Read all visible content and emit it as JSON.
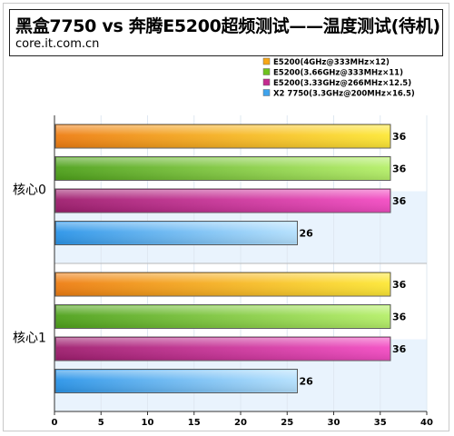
{
  "header": {
    "title": "黑盒7750 vs 奔腾E5200超频测试——温度测试(待机)",
    "source": "core.it.com.cn"
  },
  "chart_data": {
    "type": "bar",
    "orientation": "horizontal",
    "title": "黑盒7750 vs 奔腾E5200超频测试——温度测试(待机)",
    "xlabel": "",
    "ylabel": "",
    "xlim": [
      0,
      40
    ],
    "x_ticks": [
      0,
      5,
      10,
      15,
      20,
      25,
      30,
      35,
      40
    ],
    "categories": [
      "核心0",
      "核心1"
    ],
    "legend_position": "top-right",
    "grid": true,
    "series": [
      {
        "name": "E5200(4GHz@333MHz×12)",
        "values": [
          36,
          36
        ],
        "color": "#f7a716"
      },
      {
        "name": "E5200(3.66GHz@333MHz×11)",
        "values": [
          36,
          36
        ],
        "color": "#6ec21e"
      },
      {
        "name": "E5200(3.33GHz@266MHz×12.5)",
        "values": [
          36,
          36
        ],
        "color": "#c42a8e"
      },
      {
        "name": "X2 7750(3.3GHz@200MHz×16.5)",
        "values": [
          26,
          26
        ],
        "color": "#3fa3ec"
      }
    ]
  }
}
